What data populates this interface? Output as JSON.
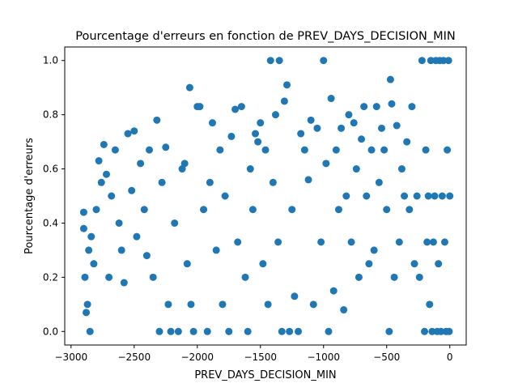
{
  "chart_data": {
    "type": "scatter",
    "title": "Pourcentage d'erreurs en fonction de PREV_DAYS_DECISION_MIN",
    "xlabel": "PREV_DAYS_DECISION_MIN",
    "ylabel": "Pourcentage d'erreurs",
    "xlim": [
      -3050,
      130
    ],
    "ylim": [
      -0.05,
      1.05
    ],
    "xticks": [
      {
        "value": -3000,
        "label": "−3000"
      },
      {
        "value": -2500,
        "label": "−2500"
      },
      {
        "value": -2000,
        "label": "−2000"
      },
      {
        "value": -1500,
        "label": "−1500"
      },
      {
        "value": -1000,
        "label": "−1000"
      },
      {
        "value": -500,
        "label": "−500"
      },
      {
        "value": 0,
        "label": "0"
      }
    ],
    "yticks": [
      {
        "value": 0.0,
        "label": "0.0"
      },
      {
        "value": 0.2,
        "label": "0.2"
      },
      {
        "value": 0.4,
        "label": "0.4"
      },
      {
        "value": 0.6,
        "label": "0.6"
      },
      {
        "value": 0.8,
        "label": "0.8"
      },
      {
        "value": 1.0,
        "label": "1.0"
      }
    ],
    "grid": false,
    "legend": "none",
    "marker_color": "#1f77b4",
    "points": [
      [
        -2900,
        0.44
      ],
      [
        -2900,
        0.38
      ],
      [
        -2890,
        0.2
      ],
      [
        -2880,
        0.07
      ],
      [
        -2870,
        0.1
      ],
      [
        -2860,
        0.3
      ],
      [
        -2850,
        0.0
      ],
      [
        -2840,
        0.35
      ],
      [
        -2820,
        0.25
      ],
      [
        -2800,
        0.45
      ],
      [
        -2780,
        0.63
      ],
      [
        -2760,
        0.55
      ],
      [
        -2740,
        0.69
      ],
      [
        -2720,
        0.58
      ],
      [
        -2700,
        0.2
      ],
      [
        -2680,
        0.5
      ],
      [
        -2650,
        0.67
      ],
      [
        -2620,
        0.4
      ],
      [
        -2600,
        0.3
      ],
      [
        -2580,
        0.18
      ],
      [
        -2550,
        0.73
      ],
      [
        -2520,
        0.52
      ],
      [
        -2500,
        0.74
      ],
      [
        -2480,
        0.35
      ],
      [
        -2450,
        0.62
      ],
      [
        -2420,
        0.45
      ],
      [
        -2400,
        0.28
      ],
      [
        -2380,
        0.67
      ],
      [
        -2350,
        0.2
      ],
      [
        -2320,
        0.78
      ],
      [
        -2300,
        0.0
      ],
      [
        -2280,
        0.55
      ],
      [
        -2250,
        0.68
      ],
      [
        -2230,
        0.1
      ],
      [
        -2210,
        0.0
      ],
      [
        -2180,
        0.4
      ],
      [
        -2150,
        0.0
      ],
      [
        -2120,
        0.6
      ],
      [
        -2100,
        0.62
      ],
      [
        -2080,
        0.25
      ],
      [
        -2060,
        0.9
      ],
      [
        -2050,
        0.1
      ],
      [
        -2030,
        0.0
      ],
      [
        -2000,
        0.83
      ],
      [
        -1980,
        0.83
      ],
      [
        -1950,
        0.45
      ],
      [
        -1920,
        0.0
      ],
      [
        -1900,
        0.55
      ],
      [
        -1880,
        0.77
      ],
      [
        -1850,
        0.3
      ],
      [
        -1820,
        0.67
      ],
      [
        -1800,
        0.1
      ],
      [
        -1780,
        0.5
      ],
      [
        -1750,
        0.0
      ],
      [
        -1730,
        0.72
      ],
      [
        -1700,
        0.82
      ],
      [
        -1680,
        0.33
      ],
      [
        -1650,
        0.83
      ],
      [
        -1620,
        0.2
      ],
      [
        -1600,
        0.0
      ],
      [
        -1580,
        0.6
      ],
      [
        -1560,
        0.45
      ],
      [
        -1540,
        0.73
      ],
      [
        -1520,
        0.7
      ],
      [
        -1500,
        0.77
      ],
      [
        -1480,
        0.25
      ],
      [
        -1460,
        0.67
      ],
      [
        -1440,
        0.1
      ],
      [
        -1420,
        1.0
      ],
      [
        -1400,
        0.55
      ],
      [
        -1380,
        0.8
      ],
      [
        -1360,
        0.33
      ],
      [
        -1350,
        1.0
      ],
      [
        -1330,
        0.0
      ],
      [
        -1310,
        0.85
      ],
      [
        -1290,
        0.91
      ],
      [
        -1270,
        0.0
      ],
      [
        -1250,
        0.45
      ],
      [
        -1230,
        0.13
      ],
      [
        -1200,
        0.0
      ],
      [
        -1180,
        0.73
      ],
      [
        -1150,
        0.67
      ],
      [
        -1120,
        0.56
      ],
      [
        -1100,
        0.78
      ],
      [
        -1080,
        0.1
      ],
      [
        -1050,
        0.75
      ],
      [
        -1020,
        0.33
      ],
      [
        -1000,
        1.0
      ],
      [
        -980,
        0.62
      ],
      [
        -960,
        0.0
      ],
      [
        -940,
        0.86
      ],
      [
        -920,
        0.15
      ],
      [
        -900,
        0.67
      ],
      [
        -880,
        0.45
      ],
      [
        -860,
        0.75
      ],
      [
        -840,
        0.08
      ],
      [
        -820,
        0.5
      ],
      [
        -800,
        0.8
      ],
      [
        -780,
        0.33
      ],
      [
        -760,
        0.77
      ],
      [
        -740,
        0.6
      ],
      [
        -720,
        0.2
      ],
      [
        -700,
        0.71
      ],
      [
        -680,
        0.83
      ],
      [
        -660,
        0.5
      ],
      [
        -640,
        0.25
      ],
      [
        -620,
        0.67
      ],
      [
        -600,
        0.3
      ],
      [
        -580,
        0.83
      ],
      [
        -560,
        0.55
      ],
      [
        -540,
        0.75
      ],
      [
        -520,
        0.67
      ],
      [
        -500,
        0.45
      ],
      [
        -480,
        0.0
      ],
      [
        -470,
        0.93
      ],
      [
        -460,
        0.84
      ],
      [
        -440,
        0.2
      ],
      [
        -420,
        0.76
      ],
      [
        -400,
        0.33
      ],
      [
        -380,
        0.6
      ],
      [
        -360,
        0.5
      ],
      [
        -340,
        0.7
      ],
      [
        -320,
        0.45
      ],
      [
        -300,
        0.83
      ],
      [
        -280,
        0.25
      ],
      [
        -260,
        0.5
      ],
      [
        -240,
        0.2
      ],
      [
        -220,
        1.0
      ],
      [
        -200,
        0.0
      ],
      [
        -190,
        0.67
      ],
      [
        -180,
        0.33
      ],
      [
        -170,
        0.5
      ],
      [
        -160,
        0.1
      ],
      [
        -150,
        1.0
      ],
      [
        -140,
        0.0
      ],
      [
        -130,
        0.33
      ],
      [
        -120,
        0.5
      ],
      [
        -110,
        1.0
      ],
      [
        -100,
        0.0
      ],
      [
        -90,
        0.25
      ],
      [
        -80,
        1.0
      ],
      [
        -70,
        0.0
      ],
      [
        -60,
        0.5
      ],
      [
        -50,
        1.0
      ],
      [
        -40,
        0.33
      ],
      [
        -30,
        0.0
      ],
      [
        -20,
        0.67
      ],
      [
        -10,
        1.0
      ],
      [
        -5,
        0.0
      ],
      [
        0,
        0.5
      ]
    ]
  }
}
